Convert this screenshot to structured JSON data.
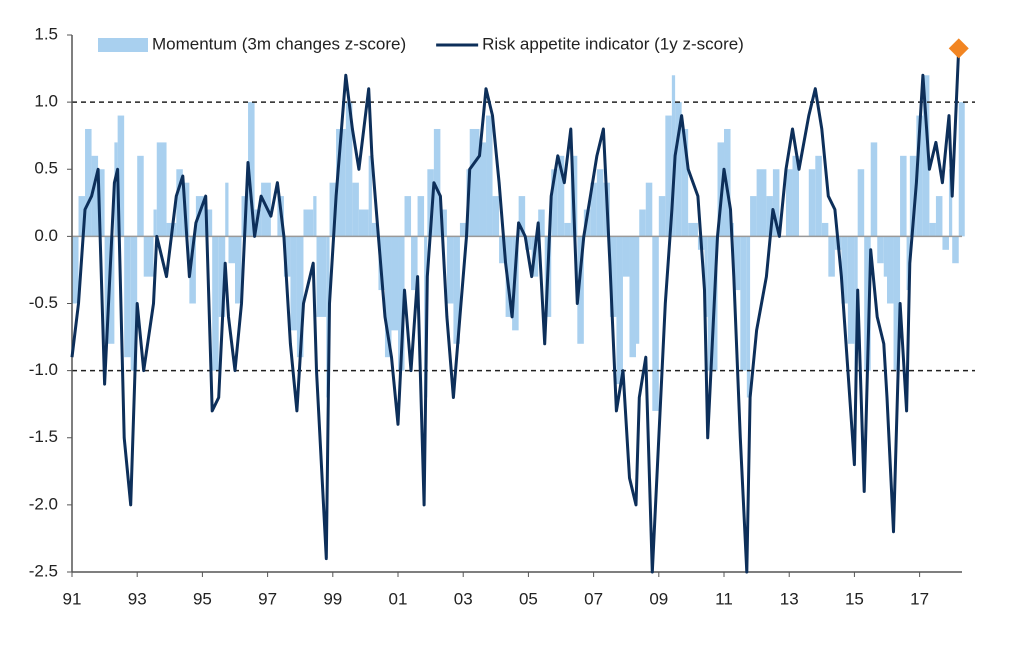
{
  "chart_data": {
    "type": "line",
    "x": [
      1991.0,
      1991.2,
      1991.4,
      1991.6,
      1991.8,
      1992.0,
      1992.3,
      1992.4,
      1992.6,
      1992.8,
      1993.0,
      1993.2,
      1993.5,
      1993.6,
      1993.9,
      1994.2,
      1994.4,
      1994.6,
      1994.8,
      1995.1,
      1995.3,
      1995.5,
      1995.7,
      1995.8,
      1996.0,
      1996.2,
      1996.4,
      1996.6,
      1996.8,
      1997.1,
      1997.3,
      1997.5,
      1997.7,
      1997.9,
      1998.1,
      1998.4,
      1998.5,
      1998.8,
      1998.9,
      1999.1,
      1999.4,
      1999.6,
      1999.8,
      2000.1,
      2000.2,
      2000.4,
      2000.6,
      2000.8,
      2001.0,
      2001.2,
      2001.4,
      2001.6,
      2001.8,
      2001.9,
      2002.1,
      2002.3,
      2002.5,
      2002.7,
      2002.9,
      2003.1,
      2003.2,
      2003.5,
      2003.7,
      2003.9,
      2004.1,
      2004.3,
      2004.5,
      2004.7,
      2004.9,
      2005.1,
      2005.3,
      2005.5,
      2005.7,
      2005.9,
      2006.1,
      2006.3,
      2006.5,
      2006.7,
      2006.9,
      2007.1,
      2007.3,
      2007.5,
      2007.7,
      2007.9,
      2008.1,
      2008.3,
      2008.4,
      2008.6,
      2008.8,
      2009.0,
      2009.2,
      2009.4,
      2009.5,
      2009.7,
      2009.9,
      2010.2,
      2010.4,
      2010.5,
      2010.8,
      2011.0,
      2011.2,
      2011.3,
      2011.5,
      2011.7,
      2011.8,
      2012.0,
      2012.3,
      2012.5,
      2012.7,
      2012.9,
      2013.1,
      2013.3,
      2013.6,
      2013.8,
      2014.0,
      2014.2,
      2014.4,
      2014.6,
      2014.8,
      2015.0,
      2015.1,
      2015.3,
      2015.5,
      2015.7,
      2015.9,
      2016.0,
      2016.2,
      2016.4,
      2016.6,
      2016.7,
      2016.9,
      2017.1,
      2017.3,
      2017.5,
      2017.7,
      2017.9,
      2018.0,
      2018.2
    ],
    "series": [
      {
        "name": "Momentum (3m changes z-score)",
        "color": "#a9d0ef",
        "style": "bars",
        "values": [
          -0.5,
          0.3,
          0.8,
          0.6,
          0.5,
          -0.8,
          0.7,
          0.9,
          -0.9,
          -1.0,
          0.6,
          -0.3,
          0.2,
          0.7,
          0.1,
          0.5,
          0.4,
          -0.5,
          0.3,
          0.2,
          -1.0,
          -0.6,
          0.4,
          -0.2,
          -0.5,
          0.3,
          1.0,
          0.2,
          0.4,
          0.0,
          0.3,
          -0.3,
          -0.7,
          -0.9,
          0.2,
          0.3,
          -0.6,
          -1.2,
          0.4,
          0.8,
          1.0,
          0.4,
          0.2,
          0.6,
          0.1,
          -0.4,
          -0.9,
          -0.7,
          -1.0,
          0.3,
          -0.4,
          0.3,
          -1.2,
          0.5,
          0.8,
          0.2,
          -0.5,
          -0.8,
          0.1,
          0.5,
          0.8,
          0.7,
          0.9,
          0.3,
          -0.2,
          -0.6,
          -0.7,
          0.3,
          -0.1,
          -0.3,
          0.2,
          -0.6,
          0.5,
          0.6,
          0.1,
          0.6,
          -0.8,
          0.2,
          0.4,
          0.5,
          0.4,
          -0.6,
          -1.1,
          -0.3,
          -0.9,
          -0.8,
          0.2,
          0.4,
          -1.3,
          0.3,
          0.9,
          1.2,
          1.0,
          0.8,
          0.1,
          -0.1,
          -0.6,
          -1.0,
          0.7,
          0.8,
          0.1,
          -0.4,
          -1.0,
          -1.2,
          0.3,
          0.5,
          0.3,
          0.5,
          0.0,
          0.5,
          0.6,
          0.0,
          0.5,
          0.6,
          0.1,
          -0.3,
          -0.1,
          -0.5,
          -0.8,
          -1.0,
          0.5,
          -1.0,
          0.7,
          -0.2,
          -0.3,
          -0.5,
          -1.0,
          0.6,
          -0.4,
          0.6,
          0.9,
          1.2,
          0.1,
          0.3,
          -0.1,
          0.5,
          -0.2,
          1.0
        ]
      },
      {
        "name": "Risk appetite indicator (1y z-score)",
        "color": "#0d2f5a",
        "style": "line",
        "values": [
          -0.9,
          -0.5,
          0.2,
          0.3,
          0.5,
          -1.1,
          0.4,
          0.5,
          -1.5,
          -2.0,
          -0.5,
          -1.0,
          -0.5,
          0.0,
          -0.3,
          0.3,
          0.45,
          -0.3,
          0.1,
          0.3,
          -1.3,
          -1.2,
          -0.2,
          -0.6,
          -1.0,
          -0.5,
          0.55,
          0.0,
          0.3,
          0.15,
          0.4,
          0.0,
          -0.8,
          -1.3,
          -0.5,
          -0.2,
          -1.0,
          -2.4,
          -0.5,
          0.3,
          1.2,
          0.8,
          0.5,
          1.1,
          0.6,
          0.0,
          -0.6,
          -0.9,
          -1.4,
          -0.4,
          -1.0,
          -0.3,
          -2.0,
          -0.3,
          0.4,
          0.3,
          -0.6,
          -1.2,
          -0.6,
          0.0,
          0.5,
          0.6,
          1.1,
          0.9,
          0.4,
          -0.2,
          -0.6,
          0.1,
          0.0,
          -0.3,
          0.1,
          -0.8,
          0.3,
          0.6,
          0.4,
          0.8,
          -0.5,
          0.0,
          0.3,
          0.6,
          0.8,
          -0.2,
          -1.3,
          -1.0,
          -1.8,
          -2.0,
          -1.2,
          -0.9,
          -2.5,
          -1.5,
          -0.5,
          0.2,
          0.6,
          0.9,
          0.5,
          0.3,
          -0.4,
          -1.5,
          0.0,
          0.5,
          0.2,
          -0.3,
          -1.5,
          -2.5,
          -1.2,
          -0.7,
          -0.3,
          0.2,
          0.0,
          0.5,
          0.8,
          0.5,
          0.9,
          1.1,
          0.8,
          0.3,
          0.2,
          -0.3,
          -1.0,
          -1.7,
          -0.4,
          -1.9,
          -0.1,
          -0.6,
          -0.8,
          -1.2,
          -2.2,
          -0.5,
          -1.3,
          -0.2,
          0.4,
          1.2,
          0.5,
          0.7,
          0.4,
          0.9,
          0.3,
          1.4
        ]
      }
    ],
    "highlight_color": "#f28522",
    "xlim": [
      1991,
      2018.3
    ],
    "xticks": [
      {
        "value": 1991,
        "label": "91"
      },
      {
        "value": 1993,
        "label": "93"
      },
      {
        "value": 1995,
        "label": "95"
      },
      {
        "value": 1997,
        "label": "97"
      },
      {
        "value": 1999,
        "label": "99"
      },
      {
        "value": 2001,
        "label": "01"
      },
      {
        "value": 2003,
        "label": "03"
      },
      {
        "value": 2005,
        "label": "05"
      },
      {
        "value": 2007,
        "label": "07"
      },
      {
        "value": 2009,
        "label": "09"
      },
      {
        "value": 2011,
        "label": "11"
      },
      {
        "value": 2013,
        "label": "13"
      },
      {
        "value": 2015,
        "label": "15"
      },
      {
        "value": 2017,
        "label": "17"
      }
    ],
    "ylim": [
      -2.5,
      1.5
    ],
    "yticks": [
      1.5,
      {
        "value": 1,
        "label": "1.0"
      },
      0.5,
      {
        "value": 0,
        "label": "0.0"
      },
      -0.5,
      {
        "value": -1,
        "label": "-1.0"
      },
      -1.5,
      {
        "value": -2,
        "label": "-2.0"
      },
      -2.5
    ],
    "hlines": [
      1,
      -1
    ],
    "legend": "top"
  }
}
